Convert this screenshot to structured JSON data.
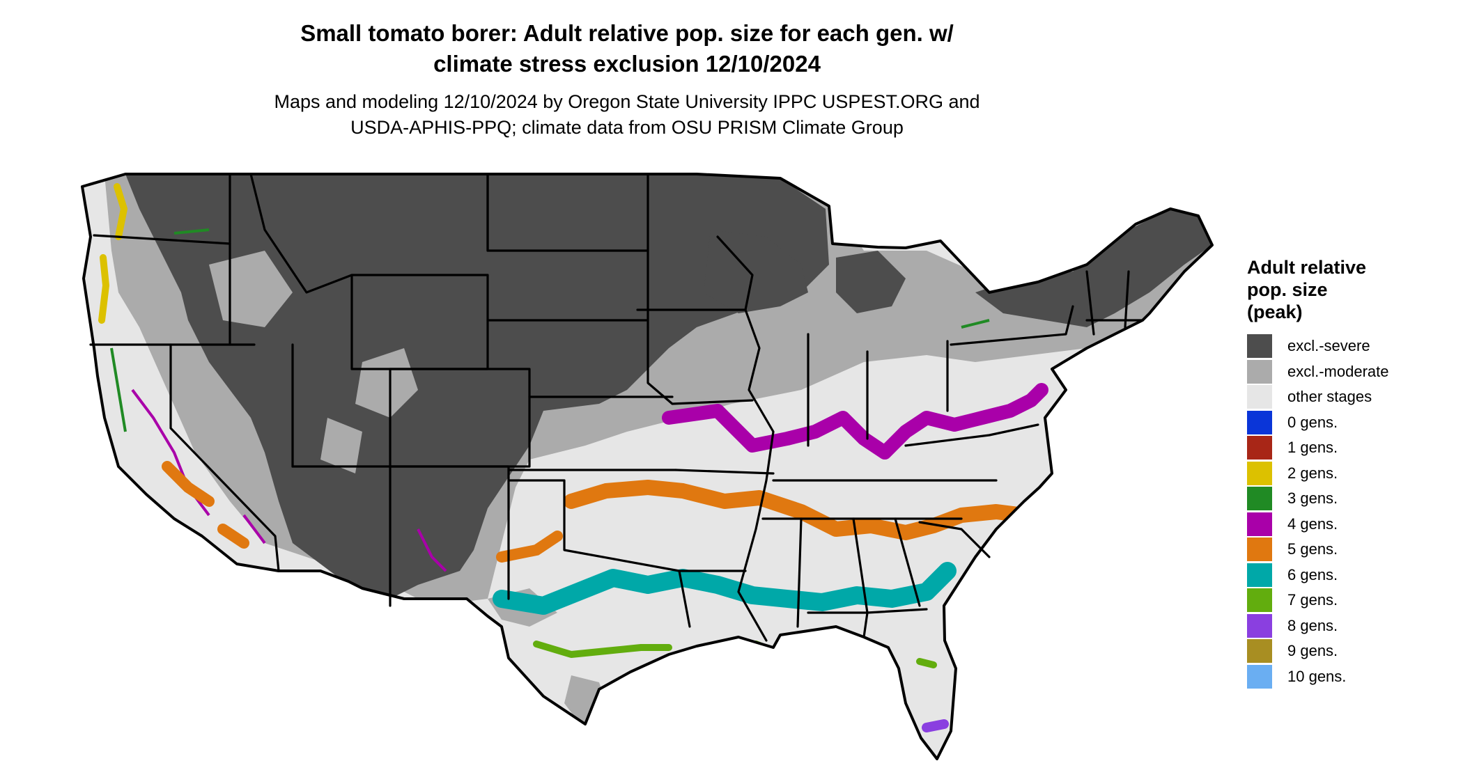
{
  "title": {
    "line1": "Small tomato borer: Adult relative pop. size for each gen. w/",
    "line2": "climate stress exclusion 12/10/2024"
  },
  "subtitle": {
    "line1": "Maps and modeling 12/10/2024 by Oregon State University IPPC USPEST.ORG and",
    "line2": "USDA-APHIS-PPQ; climate data from OSU PRISM Climate Group"
  },
  "legend": {
    "title_lines": [
      "Adult relative",
      "pop. size",
      "(peak)"
    ],
    "items": [
      {
        "label": "excl.-severe",
        "color": "#4d4d4d"
      },
      {
        "label": "excl.-moderate",
        "color": "#ababab"
      },
      {
        "label": "other stages",
        "color": "#e6e6e6"
      },
      {
        "label": "0 gens.",
        "color": "#0a35d8"
      },
      {
        "label": "1 gens.",
        "color": "#a82617"
      },
      {
        "label": "2 gens.",
        "color": "#dcc100"
      },
      {
        "label": "3 gens.",
        "color": "#208a24"
      },
      {
        "label": "4 gens.",
        "color": "#a900a9"
      },
      {
        "label": "5 gens.",
        "color": "#e07810"
      },
      {
        "label": "6 gens.",
        "color": "#00a8a8"
      },
      {
        "label": "7 gens.",
        "color": "#62ad0e"
      },
      {
        "label": "8 gens.",
        "color": "#8a3fe0"
      },
      {
        "label": "9 gens.",
        "color": "#a88e22"
      },
      {
        "label": "10 gens.",
        "color": "#6aaef2"
      }
    ]
  }
}
